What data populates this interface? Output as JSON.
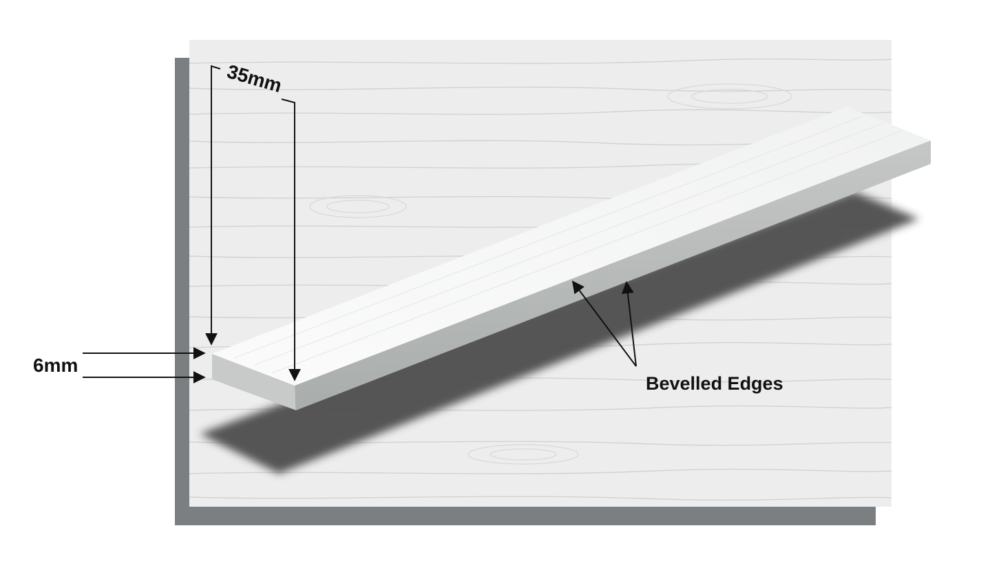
{
  "labels": {
    "width": "35mm",
    "thickness": "6mm",
    "edges": "Bevelled Edges"
  },
  "colors": {
    "frame_shadow": "#7b7f81",
    "wood_background": "#ededed",
    "grain": "#cfcfcf",
    "board_top": "#f6f7f6",
    "board_side": "#b4b8b6",
    "board_shadow": "#4e4e4e",
    "annotation": "#111111"
  }
}
